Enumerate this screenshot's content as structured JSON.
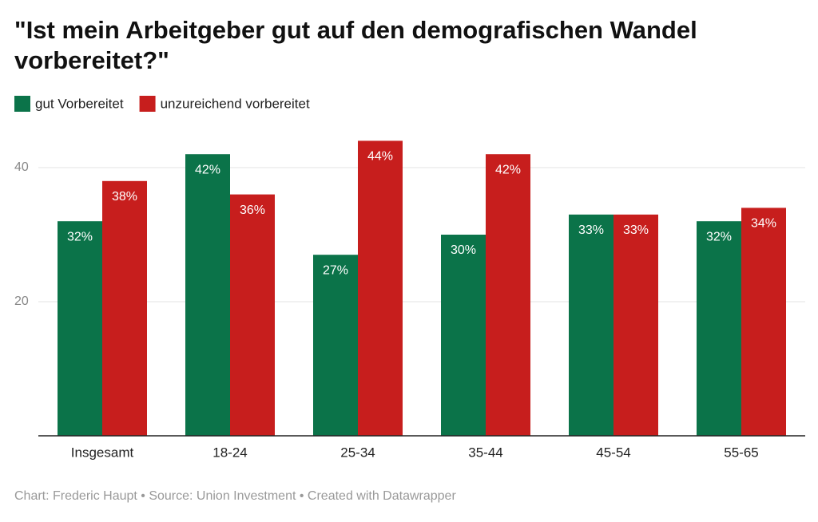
{
  "chart_data": {
    "type": "bar",
    "title_lines": [
      "\"Ist mein Arbeitgeber gut auf den demografischen Wandel",
      "vorbereitet?\""
    ],
    "categories": [
      "Insgesamt",
      "18-24",
      "25-34",
      "35-44",
      "45-54",
      "55-65"
    ],
    "series": [
      {
        "name": "gut Vorbereitet",
        "color": "#0b7349",
        "values": [
          32,
          42,
          27,
          30,
          33,
          32
        ],
        "value_labels": [
          "32%",
          "42%",
          "27%",
          "30%",
          "33%",
          "32%"
        ]
      },
      {
        "name": "unzureichend vorbereitet",
        "color": "#c71e1d",
        "values": [
          38,
          36,
          44,
          42,
          33,
          34
        ],
        "value_labels": [
          "38%",
          "36%",
          "44%",
          "42%",
          "33%",
          "34%"
        ]
      }
    ],
    "ylim": [
      0,
      45
    ],
    "yticks": [
      20,
      40
    ],
    "grid": true,
    "source": "Chart: Frederic Haupt • Source: Union Investment • Created with Datawrapper"
  }
}
